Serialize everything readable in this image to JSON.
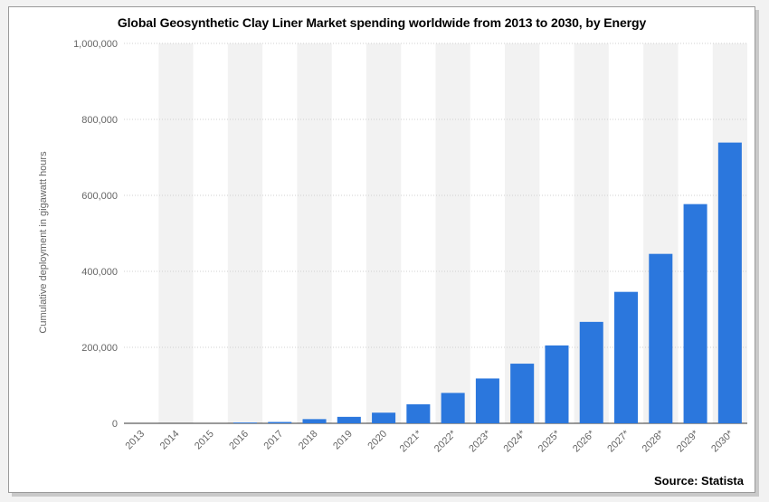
{
  "chart_data": {
    "type": "bar",
    "title": "Global Geosynthetic Clay Liner Market spending worldwide from 2013 to 2030, by Energy",
    "xlabel": "",
    "ylabel": "Cumulative deployment in gigawatt hours",
    "ylim": [
      0,
      1000000
    ],
    "yticks": [
      0,
      200000,
      400000,
      600000,
      800000,
      1000000
    ],
    "ytick_labels": [
      "0",
      "200,000",
      "400,000",
      "600,000",
      "800,000",
      "1,000,000"
    ],
    "grid": true,
    "categories": [
      "2013",
      "2014",
      "2015",
      "2016",
      "2017",
      "2018",
      "2019",
      "2020",
      "2021*",
      "2022*",
      "2023*",
      "2024*",
      "2025*",
      "2026*",
      "2027*",
      "2028*",
      "2029*",
      "2030*"
    ],
    "values": [
      0,
      0,
      0,
      2000,
      3500,
      11000,
      17000,
      28000,
      50000,
      80000,
      118000,
      157000,
      205000,
      267000,
      346000,
      446000,
      577000,
      739000
    ],
    "bar_color": "#2b77dd",
    "band_color": "#f2f2f2",
    "source": "Source: Statista"
  }
}
